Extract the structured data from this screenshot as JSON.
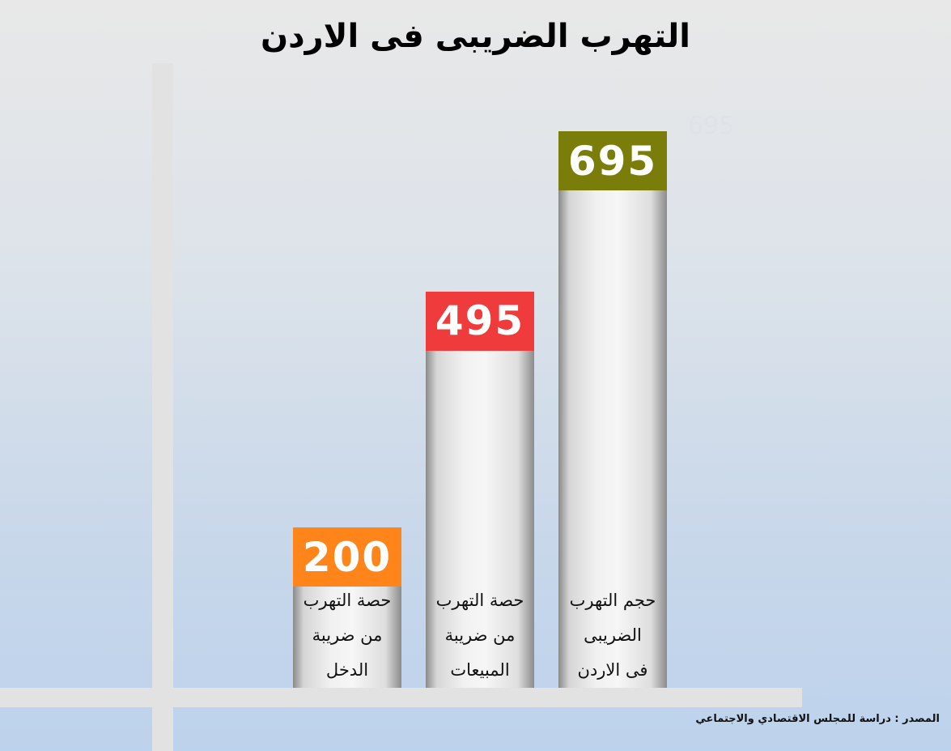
{
  "chart_data": {
    "type": "bar",
    "title": "التهرب الضريبى فى الاردن",
    "categories": [
      "حصة التهرب\nمن ضريبة\nالدخل",
      "حصة التهرب\nمن ضريبة\nالمبيعات",
      "حجم التهرب\nالضريبى\nفى الاردن"
    ],
    "values": [
      200,
      495,
      695
    ],
    "value_labels": [
      "200",
      "495",
      "695"
    ],
    "cap_colors": [
      "#ff8419",
      "#ef3b3b",
      "#7a7d0a"
    ],
    "ghost_value": "695",
    "ylim": [
      0,
      850
    ],
    "grid": false
  },
  "source": "المصدر : دراسة للمجلس الاقتصادي والاجتماعي"
}
